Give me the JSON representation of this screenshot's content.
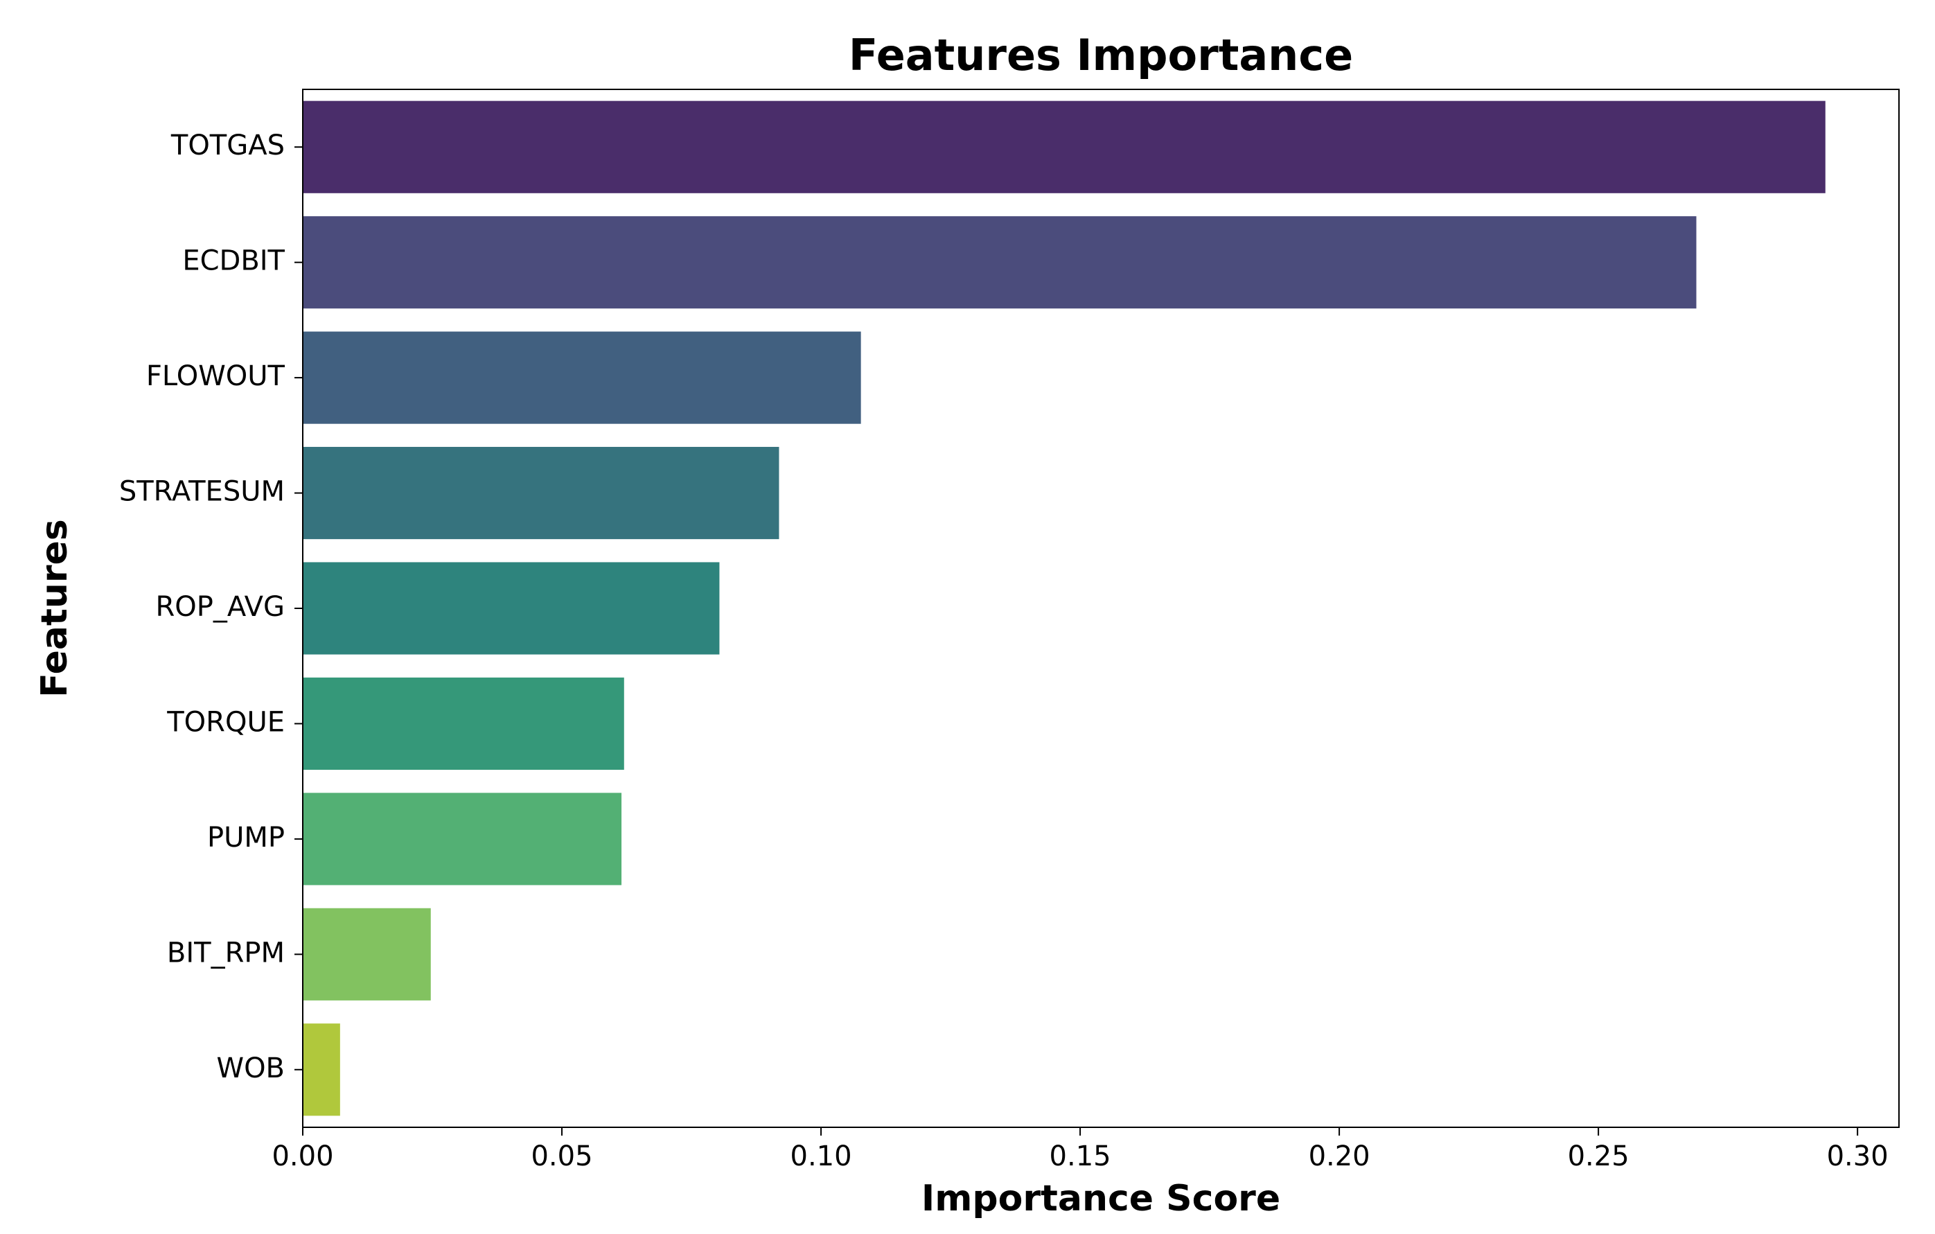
{
  "chart_data": {
    "type": "barh",
    "title": "Features Importance",
    "x_label": "Importance Score",
    "y_label": "Features",
    "categories": [
      "TOTGAS",
      "ECDBIT",
      "FLOWOUT",
      "STRATESUM",
      "ROP_AVG",
      "TORQUE",
      "PUMP",
      "BIT_RPM",
      "WOB"
    ],
    "values": [
      0.2938,
      0.2689,
      0.1077,
      0.0919,
      0.0804,
      0.062,
      0.0615,
      0.0247,
      0.0072
    ],
    "colors": [
      "#4a2d6a",
      "#4b4c7c",
      "#416080",
      "#36737e",
      "#2e847d",
      "#359879",
      "#53b074",
      "#82c260",
      "#b0c83c"
    ],
    "xlim": [
      0,
      0.308
    ],
    "xticks": [
      {
        "value": 0,
        "label": "0.00"
      },
      {
        "value": 0.05,
        "label": "0.05"
      },
      {
        "value": 0.1,
        "label": "0.10"
      },
      {
        "value": 0.15,
        "label": "0.15"
      },
      {
        "value": 0.2,
        "label": "0.20"
      },
      {
        "value": 0.25,
        "label": "0.25"
      },
      {
        "value": 0.3,
        "label": "0.30"
      }
    ],
    "grid": false
  }
}
